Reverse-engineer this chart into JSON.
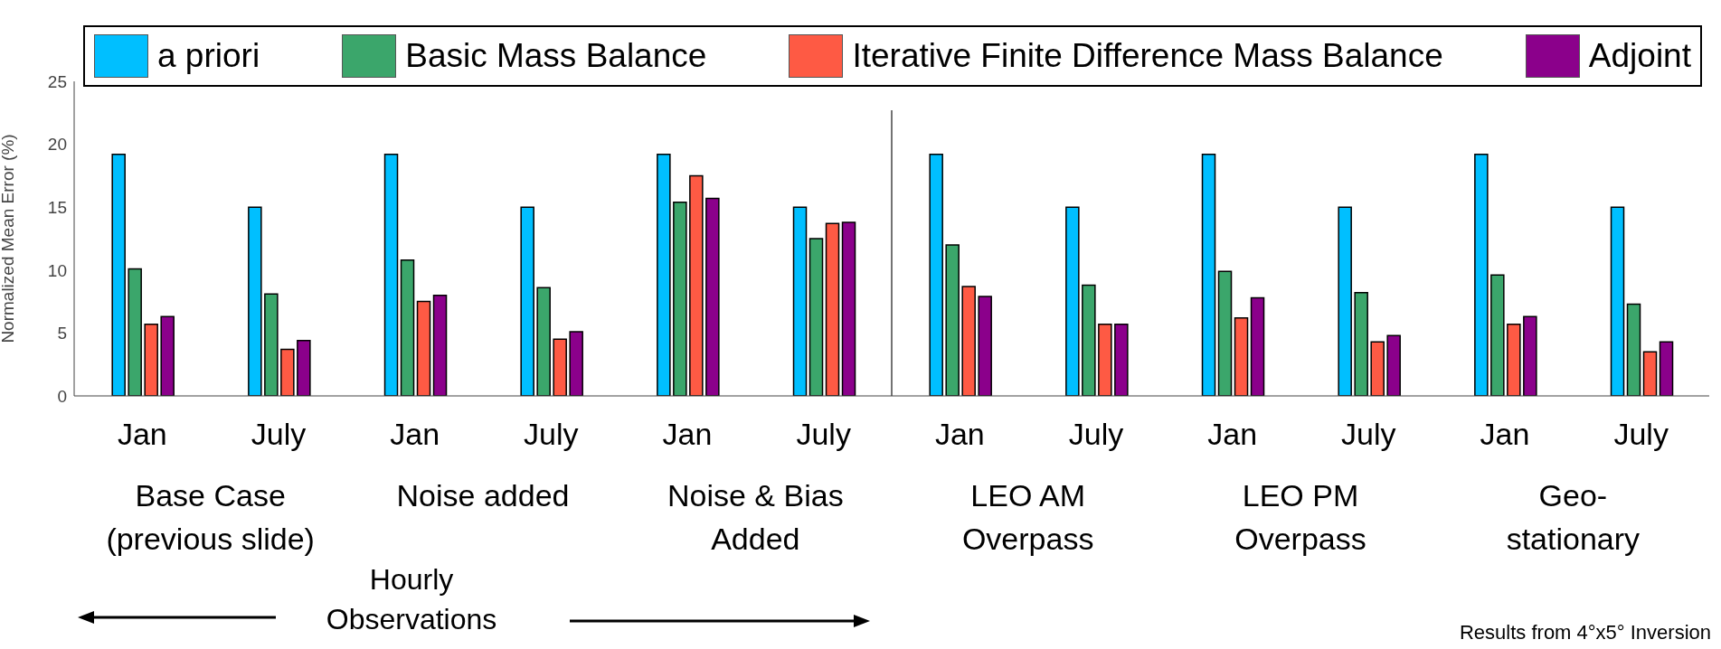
{
  "chart_data": {
    "type": "bar",
    "ylabel": "Normalized Mean Error (%)",
    "categories": [
      "Jan",
      "July",
      "Jan",
      "July",
      "Jan",
      "July",
      "Jan",
      "July",
      "Jan",
      "July",
      "Jan",
      "July"
    ],
    "series": [
      {
        "name": "a priori",
        "color": "#00bfff",
        "values": [
          19.2,
          15.0,
          19.2,
          15.0,
          19.2,
          15.0,
          19.2,
          15.0,
          19.2,
          15.0,
          19.2,
          15.0
        ]
      },
      {
        "name": "Basic Mass Balance",
        "color": "#3ba66b",
        "values": [
          10.1,
          8.1,
          10.8,
          8.6,
          15.4,
          12.5,
          12.0,
          8.8,
          9.9,
          8.2,
          9.6,
          7.3
        ]
      },
      {
        "name": "Iterative Finite Difference Mass Balance",
        "color": "#fe5a44",
        "values": [
          5.7,
          3.7,
          7.5,
          4.5,
          17.5,
          13.7,
          8.7,
          5.7,
          6.2,
          4.3,
          5.7,
          3.5
        ]
      },
      {
        "name": "Adjoint",
        "color": "#8b008b",
        "values": [
          6.3,
          4.4,
          8.0,
          5.1,
          15.7,
          13.8,
          7.9,
          5.7,
          7.8,
          4.8,
          6.3,
          4.3
        ]
      }
    ],
    "ylim": [
      0,
      25
    ],
    "yticks": [
      0,
      5,
      10,
      15,
      20,
      25
    ],
    "legend": "top",
    "annotations": [
      "Base Case\n(previous slide)",
      "Noise added",
      "Noise & Bias\nAdded",
      "LEO AM\nOverpass",
      "LEO PM\nOverpass",
      "Geo-\nstationary",
      "Hourly\nObservations",
      "Results from 4°x5° Inversion"
    ]
  }
}
